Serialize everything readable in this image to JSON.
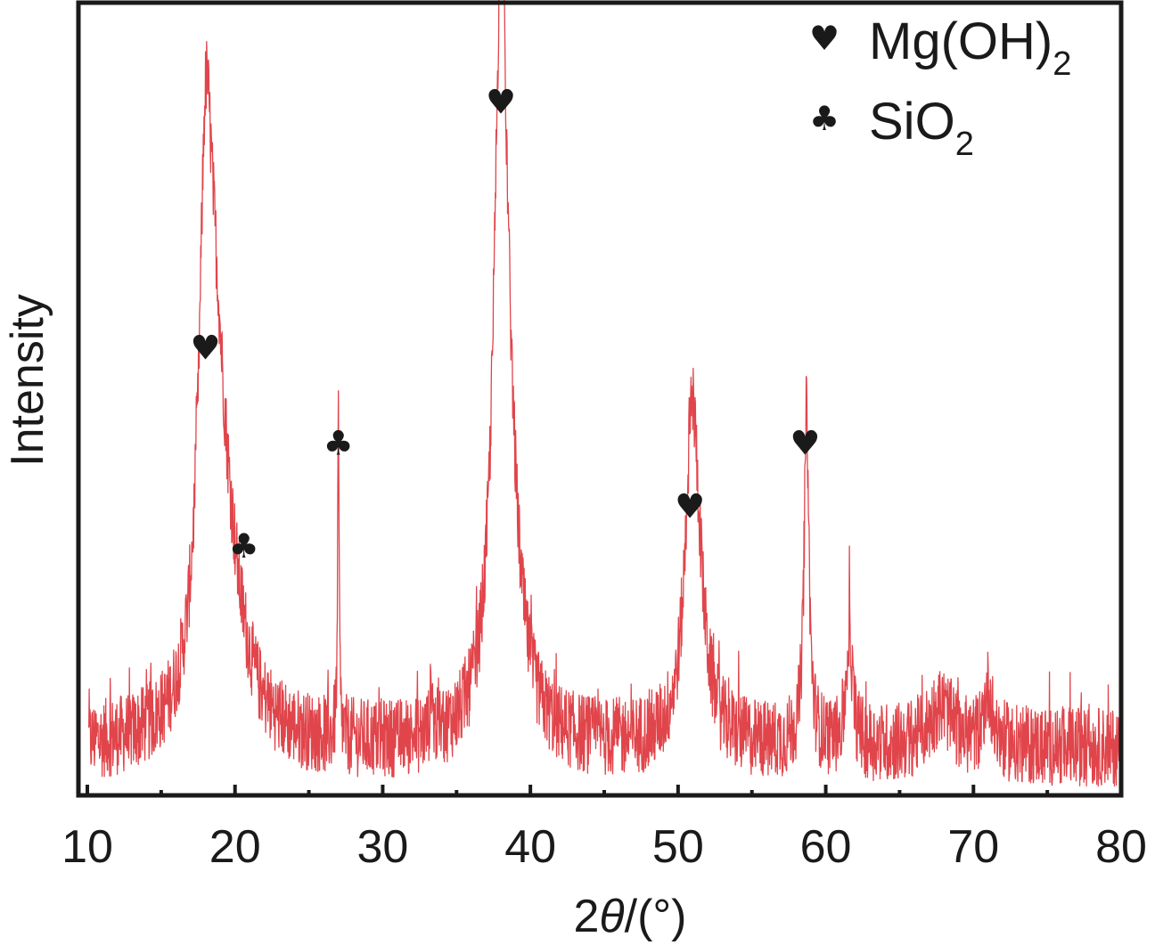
{
  "chart_data": {
    "type": "line",
    "title": "",
    "xlabel_prefix": "2",
    "xlabel_theta": "θ",
    "xlabel_suffix": "/(°)",
    "ylabel": "Intensity",
    "xlim": [
      10,
      80
    ],
    "ylim": [
      0,
      100
    ],
    "xticks": [
      10,
      20,
      30,
      40,
      50,
      60,
      70,
      80
    ],
    "yticks_shown": false,
    "line_color": "#e0454b",
    "baseline": 6,
    "noise_amplitude": 5,
    "peaks": [
      {
        "x": 18.0,
        "height": 52,
        "width": 0.5
      },
      {
        "x": 18.6,
        "height": 36,
        "width": 0.9
      },
      {
        "x": 19.5,
        "height": 14,
        "width": 1.4
      },
      {
        "x": 27.0,
        "height": 40,
        "width": 0.06
      },
      {
        "x": 33.3,
        "height": 7,
        "width": 0.08
      },
      {
        "x": 38.0,
        "height": 85,
        "width": 0.55
      },
      {
        "x": 38.5,
        "height": 20,
        "width": 0.9
      },
      {
        "x": 50.9,
        "height": 28,
        "width": 0.5
      },
      {
        "x": 51.2,
        "height": 18,
        "width": 0.7
      },
      {
        "x": 58.7,
        "height": 42,
        "width": 0.2
      },
      {
        "x": 61.6,
        "height": 14,
        "width": 0.25
      },
      {
        "x": 67.8,
        "height": 5,
        "width": 1.0
      },
      {
        "x": 71.0,
        "height": 7,
        "width": 0.35
      }
    ],
    "peak_labels": [
      {
        "x": 18.0,
        "y": 55,
        "phase": "Mg(OH)2",
        "symbol": "♥"
      },
      {
        "x": 20.6,
        "y": 30,
        "phase": "SiO2",
        "symbol": "♣"
      },
      {
        "x": 27.0,
        "y": 43,
        "phase": "SiO2",
        "symbol": "♣"
      },
      {
        "x": 38.0,
        "y": 86,
        "phase": "Mg(OH)2",
        "symbol": "♥"
      },
      {
        "x": 50.8,
        "y": 35,
        "phase": "Mg(OH)2",
        "symbol": "♥"
      },
      {
        "x": 58.6,
        "y": 43,
        "phase": "Mg(OH)2",
        "symbol": "♥"
      }
    ],
    "legend": [
      {
        "symbol": "♥",
        "label": "Mg(OH)",
        "sub": "2"
      },
      {
        "symbol": "♣",
        "label": "SiO",
        "sub": "2"
      }
    ],
    "legend_position": "top-right"
  }
}
